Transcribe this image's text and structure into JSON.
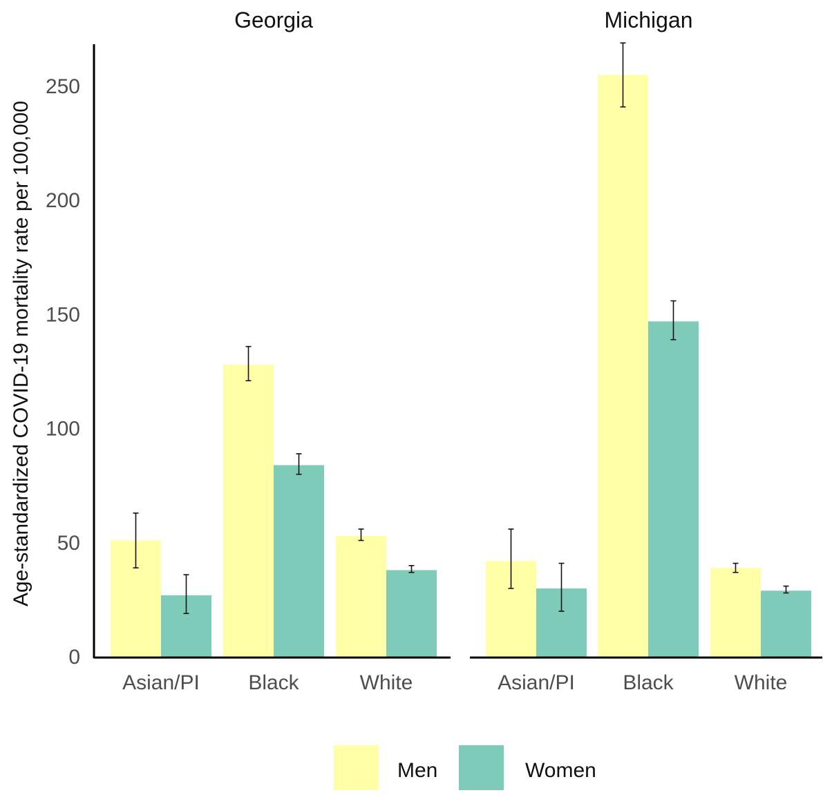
{
  "chart_data": {
    "type": "bar",
    "ylabel": "Age-standardized COVID-19 mortality rate per 100,000",
    "ylim": [
      0,
      268
    ],
    "yticks": [
      0,
      50,
      100,
      150,
      200,
      250
    ],
    "grid": false,
    "legend_position": "bottom",
    "categories": [
      "Asian/PI",
      "Black",
      "White"
    ],
    "series_styles": [
      {
        "name": "Men",
        "color": "#FFFFA8"
      },
      {
        "name": "Women",
        "color": "#7ECBB9"
      }
    ],
    "panels": [
      {
        "title": "Georgia",
        "series": [
          {
            "name": "Men",
            "values": [
              51,
              128,
              53
            ],
            "error_low": [
              39,
              121,
              51
            ],
            "error_high": [
              63,
              136,
              56
            ]
          },
          {
            "name": "Women",
            "values": [
              27,
              84,
              38
            ],
            "error_low": [
              19,
              80,
              37
            ],
            "error_high": [
              36,
              89,
              40
            ]
          }
        ]
      },
      {
        "title": "Michigan",
        "series": [
          {
            "name": "Men",
            "values": [
              42,
              255,
              39
            ],
            "error_low": [
              30,
              241,
              37
            ],
            "error_high": [
              56,
              269,
              41
            ]
          },
          {
            "name": "Women",
            "values": [
              30,
              147,
              29
            ],
            "error_low": [
              20,
              139,
              28
            ],
            "error_high": [
              41,
              156,
              31
            ]
          }
        ]
      }
    ]
  }
}
